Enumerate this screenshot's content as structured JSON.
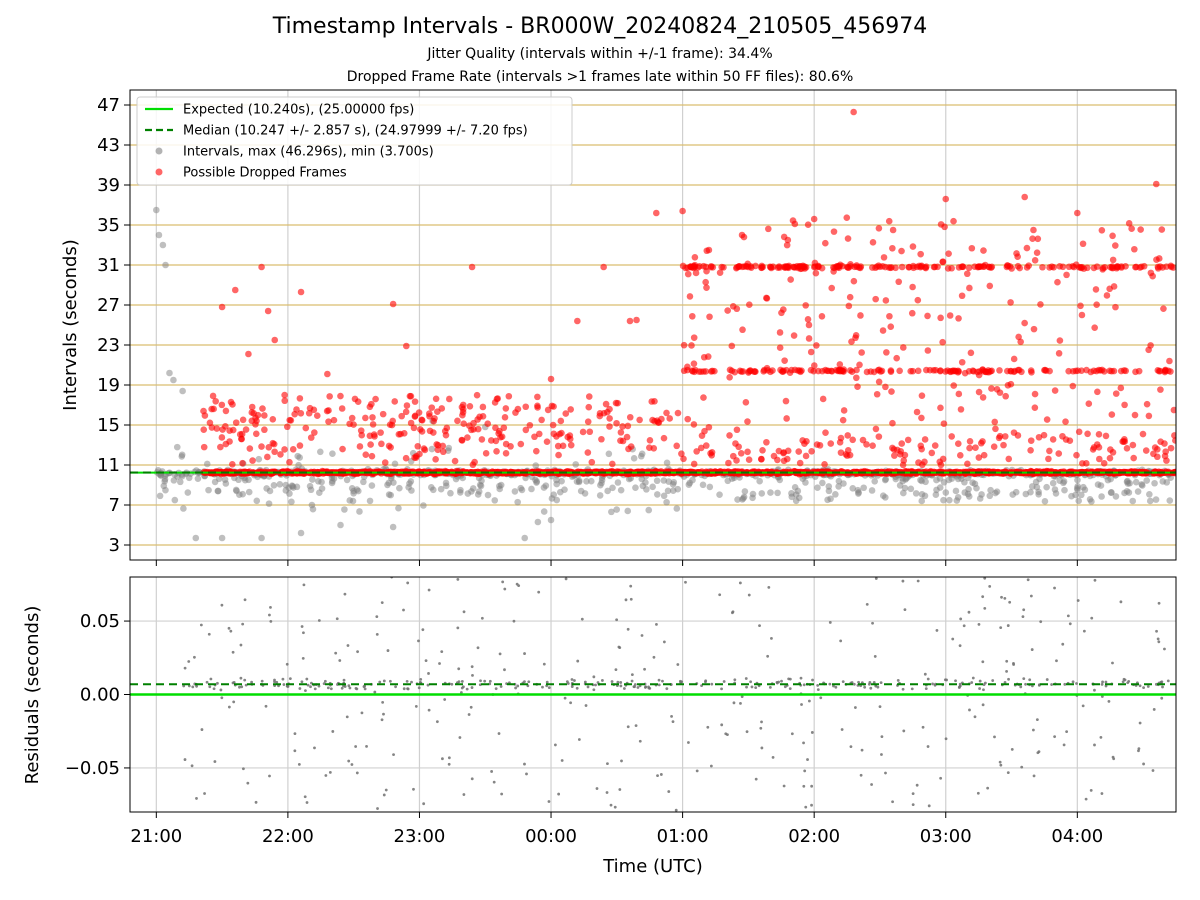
{
  "chart_data": {
    "title": "Timestamp Intervals - BR000W_20240824_210505_456974",
    "subtitle_1": "Jitter Quality (intervals within +/-1 frame): 34.4%",
    "subtitle_2": "Dropped Frame Rate (intervals >1 frames late within 50 FF files): 80.6%",
    "xlabel": "Time (UTC)",
    "x_ticks": [
      "21:00",
      "22:00",
      "23:00",
      "00:00",
      "01:00",
      "02:00",
      "03:00",
      "04:00"
    ],
    "x_range_hours": [
      20.8,
      28.75
    ],
    "panels": [
      {
        "type": "scatter",
        "ylabel": "Intervals (seconds)",
        "ylim": [
          1.5,
          48.5
        ],
        "y_ticks": [
          "3",
          "7",
          "11",
          "15",
          "19",
          "23",
          "27",
          "31",
          "35",
          "39",
          "43",
          "47"
        ],
        "grid": "horizontal golden lines at ticks, vertical grey lines at hours",
        "legend_position": "upper-left",
        "series": [
          {
            "name": "Expected (10.240s), (25.00000 fps)",
            "kind": "line",
            "value": 10.24,
            "color": "#00dd00",
            "style": "solid"
          },
          {
            "name": "Median (10.247 +/- 2.857 s), (24.97999 +/- 7.20 fps)",
            "kind": "line",
            "value": 10.247,
            "color": "#008000",
            "style": "dashed"
          },
          {
            "name": "Intervals, max (46.296s), min (3.700s)",
            "kind": "points",
            "color": "#808080",
            "x": [
              21.0,
              21.02,
              21.05,
              21.07,
              21.1,
              21.13,
              21.2,
              21.3,
              21.5,
              21.8,
              22.1,
              22.4,
              22.8,
              23.1,
              23.5,
              23.8,
              23.9,
              24.0
            ],
            "y": [
              36.5,
              34,
              33,
              31,
              20.2,
              19.5,
              18.4,
              3.7,
              3.7,
              3.7,
              4.2,
              5.0,
              4.8,
              15.4,
              14.8,
              3.7,
              5.3,
              5.5
            ]
          },
          {
            "name": "Possible Dropped Frames",
            "kind": "points",
            "color": "#ff0000",
            "x": [
              21.5,
              21.6,
              21.7,
              21.8,
              21.85,
              21.9,
              22.1,
              22.3,
              22.8,
              22.9,
              23.4,
              24.0,
              24.2,
              24.4,
              24.6,
              24.65,
              24.8,
              25.0,
              25.2,
              25.5,
              25.8,
              26.0,
              26.3,
              26.6,
              27.0,
              27.3,
              27.6,
              28.0,
              28.3,
              28.6,
              28.7
            ],
            "y": [
              26.8,
              28.5,
              22.1,
              30.8,
              26.4,
              23.5,
              28.3,
              20.1,
              27.1,
              22.9,
              30.8,
              19.6,
              25.4,
              30.8,
              25.4,
              25.5,
              36.2,
              36.4,
              32.5,
              30.8,
              33.5,
              35.6,
              46.3,
              34.5,
              37.6,
              31.0,
              37.8,
              36.2,
              30.8,
              39.1,
              21.4
            ]
          }
        ]
      },
      {
        "type": "scatter",
        "ylabel": "Residuals (seconds)",
        "ylim": [
          -0.08,
          0.08
        ],
        "y_ticks": [
          "0.05",
          "0.00",
          "−0.05"
        ],
        "grid": "both",
        "series": [
          {
            "name": "Expected",
            "kind": "line",
            "value": 0.0,
            "color": "#00dd00",
            "style": "solid"
          },
          {
            "name": "Median",
            "kind": "line",
            "value": 0.007,
            "color": "#008000",
            "style": "dashed"
          },
          {
            "name": "Residuals",
            "kind": "points",
            "color": "#707070",
            "distribution": "scattered within ±0.08 s, denser near 0.00–0.01 s"
          }
        ]
      }
    ]
  }
}
